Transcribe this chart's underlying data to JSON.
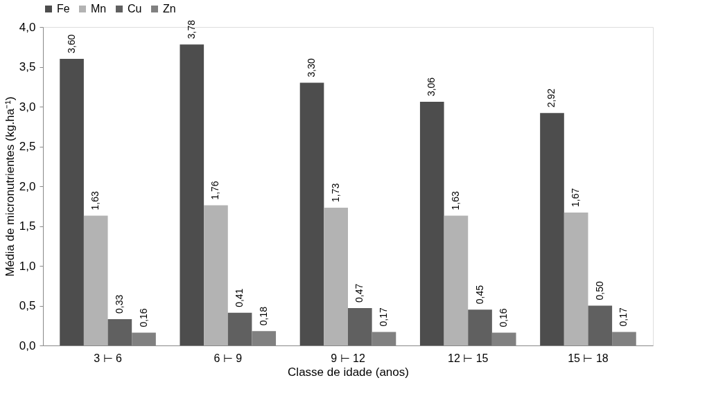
{
  "chart_data": {
    "type": "bar",
    "xlabel": "Classe de idade (anos)",
    "ylabel": "Média de micronutrientes (kg.ha⁻¹)",
    "categories": [
      "3 ⊢ 6",
      "6 ⊢ 9",
      "9 ⊢ 12",
      "12 ⊢ 15",
      "15 ⊢ 18"
    ],
    "series": [
      {
        "name": "Fe",
        "color": "#4d4d4d",
        "values": [
          3.6,
          3.78,
          3.3,
          3.06,
          2.92
        ],
        "value_labels": [
          "3,60",
          "3,78",
          "3,30",
          "3,06",
          "2,92"
        ]
      },
      {
        "name": "Mn",
        "color": "#b3b3b3",
        "values": [
          1.63,
          1.76,
          1.73,
          1.63,
          1.67
        ],
        "value_labels": [
          "1,63",
          "1,76",
          "1,73",
          "1,63",
          "1,67"
        ]
      },
      {
        "name": "Cu",
        "color": "#606060",
        "values": [
          0.33,
          0.41,
          0.47,
          0.45,
          0.5
        ],
        "value_labels": [
          "0,33",
          "0,41",
          "0,47",
          "0,45",
          "0,50"
        ]
      },
      {
        "name": "Zn",
        "color": "#808080",
        "values": [
          0.16,
          0.18,
          0.17,
          0.16,
          0.17
        ],
        "value_labels": [
          "0,16",
          "0,18",
          "0,17",
          "0,16",
          "0,17"
        ]
      }
    ],
    "ylim": [
      0,
      4
    ],
    "yticks": [
      {
        "value": 0,
        "label": "0,0"
      },
      {
        "value": 0.5,
        "label": "0,5"
      },
      {
        "value": 1,
        "label": "1,0"
      },
      {
        "value": 1.5,
        "label": "1,5"
      },
      {
        "value": 2,
        "label": "2,0"
      },
      {
        "value": 2.5,
        "label": "2,5"
      },
      {
        "value": 3,
        "label": "3,0"
      },
      {
        "value": 3.5,
        "label": "3,5"
      },
      {
        "value": 4,
        "label": "4,0"
      }
    ],
    "grid": false,
    "legend": "top"
  }
}
